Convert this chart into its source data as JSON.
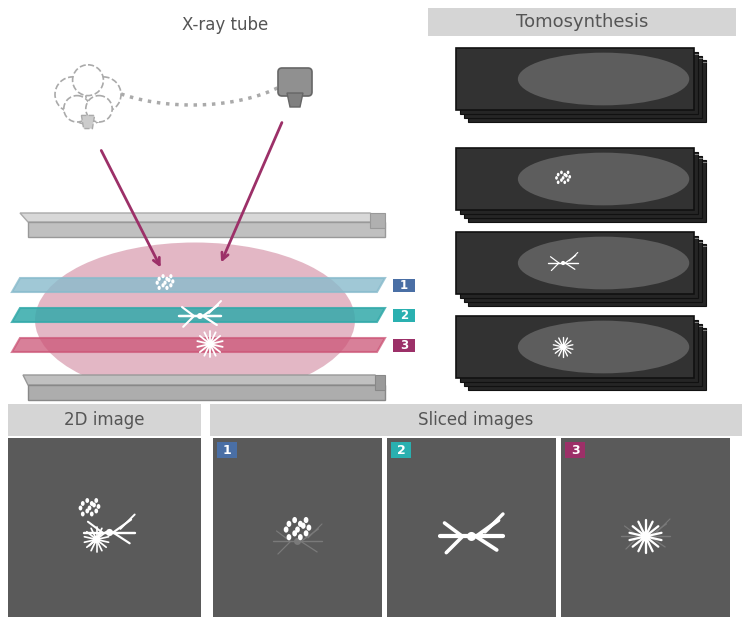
{
  "bg_color": "#ffffff",
  "title": "X-ray tube",
  "title_color": "#555555",
  "tomo_title": "Tomosynthesis",
  "tomo_title_bg": "#d5d5d5",
  "label_2d": "2D image",
  "label_sliced": "Sliced images",
  "label_bg": "#d5d5d5",
  "slice_colors": [
    "#4a6fa5",
    "#2ab0b0",
    "#9c3068"
  ],
  "slice_labels": [
    "1",
    "2",
    "3"
  ],
  "breast_color": "#c8718c",
  "layer_colors": [
    "#88bbcc",
    "#33aaaa",
    "#cc5577"
  ],
  "plate_color": "#c8c8c8",
  "plate_dark": "#aaaaaa",
  "xray_arrow_color": "#9c3068",
  "dot_arc_color": "#aaaaaa",
  "tube_color": "#999999",
  "figure_width": 7.5,
  "figure_height": 6.22
}
